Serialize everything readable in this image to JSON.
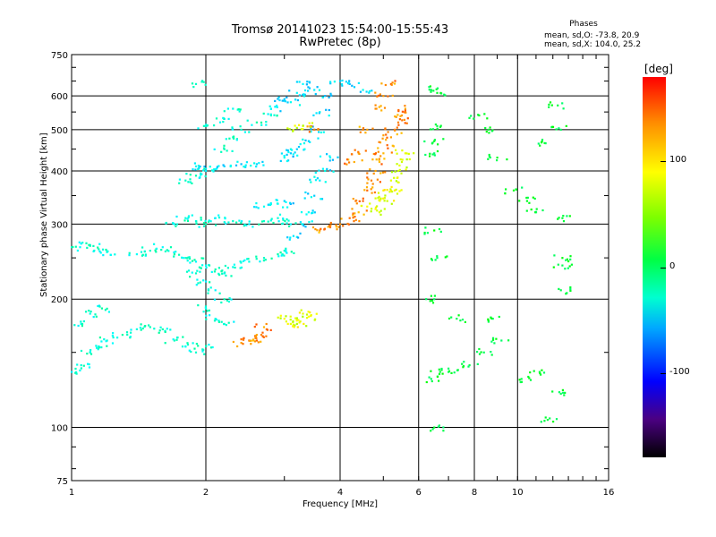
{
  "chart_data": {
    "type": "scatter",
    "title": "Tromsø 20141023 15:54:00-15:55:43",
    "subtitle": "RwPretec (8p)",
    "xlabel": "Frequency [MHz]",
    "ylabel": "Stationary phase Virtual Height [km]",
    "x_scale": "log",
    "y_scale": "log",
    "xlim": [
      1,
      16
    ],
    "ylim": [
      75,
      750
    ],
    "x_ticks": [
      1,
      2,
      4,
      6,
      8,
      10,
      16
    ],
    "y_ticks": [
      75,
      100,
      200,
      300,
      400,
      500,
      600,
      750
    ],
    "grid": true,
    "phase_stats": {
      "heading": "Phases",
      "o_mode": "mean, sd,O: -73.8, 20.9",
      "x_mode": "mean, sd,X: 104.0, 25.2"
    },
    "colorbar": {
      "unit": "[deg]",
      "ticks": [
        "100",
        "0",
        "-100"
      ],
      "tick_values": [
        100,
        0,
        -100
      ],
      "range": [
        -180,
        180
      ]
    },
    "series": [
      {
        "points": [
          [
            1.0,
            135
          ],
          [
            1.05,
            140
          ],
          [
            1.1,
            150
          ],
          [
            1.15,
            155
          ],
          [
            1.2,
            160
          ],
          [
            1.3,
            165
          ],
          [
            1.4,
            170
          ],
          [
            1.5,
            172
          ],
          [
            1.6,
            170
          ],
          [
            1.05,
            175
          ],
          [
            1.1,
            185
          ],
          [
            1.2,
            190
          ],
          [
            1.0,
            265
          ],
          [
            1.05,
            270
          ],
          [
            1.1,
            268
          ],
          [
            1.15,
            262
          ],
          [
            1.2,
            258
          ],
          [
            1.4,
            255
          ],
          [
            1.5,
            260
          ],
          [
            1.6,
            265
          ],
          [
            1.7,
            255
          ],
          [
            1.8,
            250
          ],
          [
            1.9,
            245
          ],
          [
            2.0,
            240
          ],
          [
            2.1,
            235
          ],
          [
            2.2,
            230
          ],
          [
            2.3,
            238
          ],
          [
            2.5,
            245
          ],
          [
            2.7,
            250
          ],
          [
            2.9,
            255
          ],
          [
            3.0,
            260
          ],
          [
            1.7,
            300
          ],
          [
            1.8,
            310
          ],
          [
            1.9,
            305
          ],
          [
            2.0,
            300
          ],
          [
            2.1,
            310
          ],
          [
            2.3,
            305
          ],
          [
            2.5,
            300
          ],
          [
            2.7,
            305
          ],
          [
            2.9,
            310
          ],
          [
            3.1,
            300
          ],
          [
            1.9,
            230
          ],
          [
            2.0,
            220
          ],
          [
            2.1,
            210
          ],
          [
            2.2,
            200
          ],
          [
            2.0,
            190
          ],
          [
            2.1,
            180
          ],
          [
            2.2,
            175
          ],
          [
            1.7,
            160
          ],
          [
            1.8,
            155
          ],
          [
            1.9,
            150
          ],
          [
            2.0,
            155
          ],
          [
            1.8,
            380
          ],
          [
            1.9,
            390
          ],
          [
            2.0,
            400
          ],
          [
            2.2,
            450
          ],
          [
            2.3,
            480
          ],
          [
            2.4,
            500
          ],
          [
            2.6,
            520
          ],
          [
            2.8,
            540
          ],
          [
            2.0,
            510
          ],
          [
            2.2,
            530
          ],
          [
            2.3,
            560
          ],
          [
            1.9,
            640
          ]
        ],
        "phase": -75
      },
      {
        "points": [
          [
            3.2,
            280
          ],
          [
            3.3,
            300
          ],
          [
            3.4,
            320
          ],
          [
            3.5,
            350
          ],
          [
            3.6,
            380
          ],
          [
            3.7,
            400
          ],
          [
            3.8,
            430
          ],
          [
            3.4,
            470
          ],
          [
            3.5,
            500
          ],
          [
            3.6,
            550
          ],
          [
            3.7,
            600
          ],
          [
            3.5,
            620
          ],
          [
            3.3,
            640
          ],
          [
            3.2,
            610
          ],
          [
            3.1,
            580
          ],
          [
            3.0,
            590
          ],
          [
            2.8,
            560
          ],
          [
            3.0,
            430
          ],
          [
            3.1,
            440
          ],
          [
            3.2,
            450
          ],
          [
            2.6,
            415
          ],
          [
            2.4,
            415
          ],
          [
            2.2,
            410
          ],
          [
            2.0,
            405
          ],
          [
            1.9,
            410
          ],
          [
            2.7,
            330
          ],
          [
            2.9,
            335
          ],
          [
            3.0,
            340
          ],
          [
            4.2,
            640
          ],
          [
            4.5,
            620
          ],
          [
            4.0,
            650
          ]
        ],
        "phase": -100
      },
      {
        "points": [
          [
            3.6,
            290
          ],
          [
            3.8,
            295
          ],
          [
            4.0,
            300
          ],
          [
            4.2,
            310
          ],
          [
            4.4,
            320
          ],
          [
            4.5,
            340
          ],
          [
            4.6,
            360
          ],
          [
            4.7,
            380
          ],
          [
            4.8,
            400
          ],
          [
            4.9,
            420
          ],
          [
            5.0,
            440
          ],
          [
            5.1,
            460
          ],
          [
            5.2,
            480
          ],
          [
            5.3,
            500
          ],
          [
            5.4,
            520
          ],
          [
            5.5,
            540
          ],
          [
            5.6,
            560
          ],
          [
            4.3,
            420
          ],
          [
            4.4,
            440
          ],
          [
            4.6,
            500
          ],
          [
            4.8,
            560
          ],
          [
            5.0,
            600
          ],
          [
            5.2,
            640
          ],
          [
            3.5,
            500
          ],
          [
            2.4,
            158
          ],
          [
            2.5,
            160
          ],
          [
            2.6,
            165
          ],
          [
            2.7,
            172
          ],
          [
            2.6,
            160
          ]
        ],
        "phase": 130
      },
      {
        "points": [
          [
            4.6,
            330
          ],
          [
            4.8,
            345
          ],
          [
            5.0,
            360
          ],
          [
            5.2,
            380
          ],
          [
            5.4,
            400
          ],
          [
            5.5,
            420
          ],
          [
            5.6,
            440
          ],
          [
            5.3,
            360
          ],
          [
            5.1,
            340
          ],
          [
            4.9,
            320
          ],
          [
            3.0,
            180
          ],
          [
            3.1,
            175
          ],
          [
            3.2,
            180
          ],
          [
            3.3,
            185
          ],
          [
            3.4,
            182
          ],
          [
            3.2,
            175
          ],
          [
            3.3,
            510
          ],
          [
            3.2,
            505
          ]
        ],
        "phase": 80
      },
      {
        "points": [
          [
            6.4,
            620
          ],
          [
            6.6,
            610
          ],
          [
            6.5,
            470
          ],
          [
            6.6,
            510
          ],
          [
            6.5,
            440
          ],
          [
            6.5,
            290
          ],
          [
            6.6,
            250
          ],
          [
            6.5,
            200
          ],
          [
            6.7,
            135
          ],
          [
            7.0,
            135
          ],
          [
            6.4,
            130
          ],
          [
            6.5,
            100
          ],
          [
            7.3,
            180
          ],
          [
            7.8,
            140
          ],
          [
            8.2,
            540
          ],
          [
            8.4,
            150
          ],
          [
            8.6,
            500
          ],
          [
            8.8,
            180
          ],
          [
            9.0,
            430
          ],
          [
            9.2,
            160
          ],
          [
            9.8,
            360
          ],
          [
            10.2,
            130
          ],
          [
            10.5,
            340
          ],
          [
            11.0,
            320
          ],
          [
            11.2,
            135
          ],
          [
            11.5,
            465
          ],
          [
            11.8,
            105
          ],
          [
            12.3,
            570
          ],
          [
            12.5,
            500
          ],
          [
            12.6,
            250
          ],
          [
            12.6,
            240
          ],
          [
            12.5,
            210
          ],
          [
            12.5,
            120
          ],
          [
            12.6,
            310
          ]
        ],
        "phase": -20
      }
    ]
  }
}
